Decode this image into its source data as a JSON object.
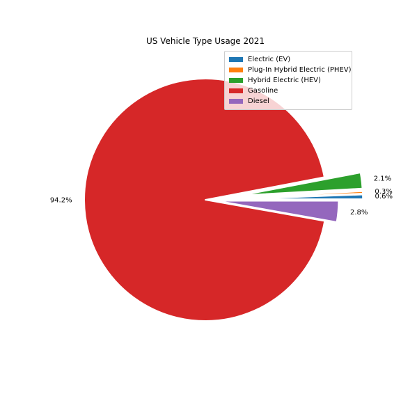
{
  "chart_data": {
    "type": "pie",
    "title": "US Vehicle Type Usage 2021",
    "start_angle_deg": 0,
    "direction": "counterclockwise",
    "legend_position": "upper-right",
    "slices": [
      {
        "label": "Electric (EV)",
        "value": 0.6,
        "pct_label": "0.6%",
        "color": "#1f77b4",
        "explode": 0.3
      },
      {
        "label": "Plug-In Hybrid Electric (PHEV)",
        "value": 0.3,
        "pct_label": "0.3%",
        "color": "#ff7f0e",
        "explode": 0.3
      },
      {
        "label": "Hybrid Electric (HEV)",
        "value": 2.1,
        "pct_label": "2.1%",
        "color": "#2ca02c",
        "explode": 0.3
      },
      {
        "label": "Gasoline",
        "value": 94.2,
        "pct_label": "94.2%",
        "color": "#d62728",
        "explode": 0
      },
      {
        "label": "Diesel",
        "value": 2.8,
        "pct_label": "2.8%",
        "color": "#9467bd",
        "explode": 0.1
      }
    ]
  }
}
